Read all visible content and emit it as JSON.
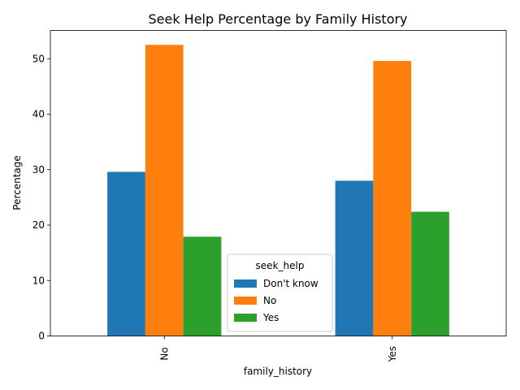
{
  "chart_data": {
    "type": "bar",
    "title": "Seek Help Percentage by Family History",
    "xlabel": "family_history",
    "ylabel": "Percentage",
    "categories": [
      "No",
      "Yes"
    ],
    "ylim": [
      0,
      55.1
    ],
    "yticks": [
      0,
      10,
      20,
      30,
      40,
      50
    ],
    "grid": false,
    "legend": {
      "title": "seek_help",
      "placement": "lower center"
    },
    "series": [
      {
        "name": "Don't know",
        "color": "#1f77b4",
        "values": [
          29.6,
          28.0
        ]
      },
      {
        "name": "No",
        "color": "#ff7f0e",
        "values": [
          52.5,
          49.6
        ]
      },
      {
        "name": "Yes",
        "color": "#2ca02c",
        "values": [
          17.9,
          22.4
        ]
      }
    ]
  }
}
